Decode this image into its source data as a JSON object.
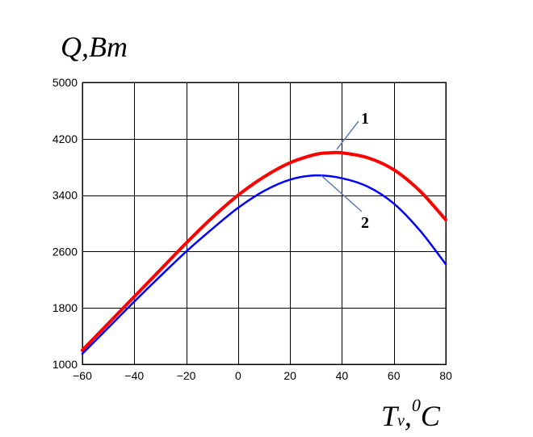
{
  "chart_data": {
    "type": "line",
    "title": "",
    "ylabel": "Q,Bm",
    "xlabel_main": "T",
    "xlabel_sub": "v",
    "xlabel_sep": ",",
    "xlabel_sup": "0",
    "xlabel_unit": "C",
    "xlim": [
      -60,
      80
    ],
    "ylim": [
      1000,
      5000
    ],
    "xticks": [
      -60,
      -40,
      -20,
      0,
      20,
      40,
      60,
      80
    ],
    "yticks": [
      1000,
      1800,
      2600,
      3400,
      4200,
      5000
    ],
    "xtick_labels": [
      "−60",
      "−40",
      "−20",
      "0",
      "20",
      "40",
      "60",
      "80"
    ],
    "ytick_labels": [
      "1000",
      "1800",
      "2600",
      "3400",
      "4200",
      "5000"
    ],
    "grid": true,
    "series": [
      {
        "name": "1",
        "color": "#ff0000",
        "label_point": [
          38,
          4050
        ],
        "x": [
          -60,
          -50,
          -40,
          -30,
          -20,
          -10,
          0,
          10,
          20,
          30,
          35,
          40,
          50,
          60,
          70,
          80
        ],
        "y": [
          1200,
          1580,
          1960,
          2340,
          2720,
          3080,
          3400,
          3660,
          3860,
          3980,
          4000,
          4000,
          3930,
          3760,
          3460,
          3050
        ]
      },
      {
        "name": "2",
        "color": "#0000ff",
        "label_point": [
          32,
          3680
        ],
        "x": [
          -60,
          -50,
          -40,
          -30,
          -20,
          -10,
          0,
          10,
          20,
          30,
          40,
          50,
          60,
          70,
          80
        ],
        "y": [
          1150,
          1520,
          1890,
          2250,
          2600,
          2920,
          3220,
          3460,
          3620,
          3680,
          3640,
          3520,
          3280,
          2900,
          2420
        ]
      }
    ]
  }
}
